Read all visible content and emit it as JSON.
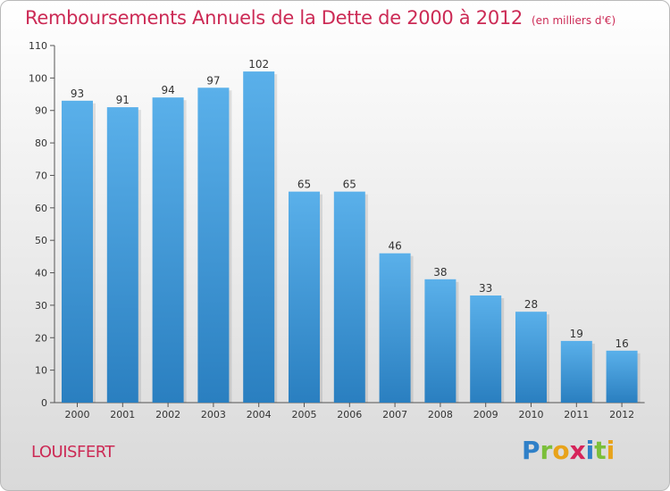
{
  "title": "Remboursements Annuels de la Dette de 2000 à 2012",
  "subtitle": "(en milliers d'€)",
  "commune": "LOUISFERT",
  "logo": {
    "letters": [
      "P",
      "r",
      "o",
      "x",
      "i",
      "t",
      "i"
    ],
    "colors": [
      "#2f80c8",
      "#7bbf3a",
      "#e8a31a",
      "#d6245a",
      "#2f80c8",
      "#7bbf3a",
      "#e8a31a"
    ]
  },
  "colors": {
    "title": "#cc2a55",
    "bar_top": "#5ab0ea",
    "bar_bottom": "#2a7fc0"
  },
  "chart_data": {
    "type": "bar",
    "title": "Remboursements Annuels de la Dette de 2000 à 2012",
    "subtitle": "(en milliers d'€)",
    "categories": [
      "2000",
      "2001",
      "2002",
      "2003",
      "2004",
      "2005",
      "2006",
      "2007",
      "2008",
      "2009",
      "2010",
      "2011",
      "2012"
    ],
    "values": [
      93,
      91,
      94,
      97,
      102,
      65,
      65,
      46,
      38,
      33,
      28,
      19,
      16
    ],
    "ylim": [
      0,
      110
    ],
    "yticks": [
      0,
      10,
      20,
      30,
      40,
      50,
      60,
      70,
      80,
      90,
      100,
      110
    ],
    "grid": false,
    "data_labels": true
  }
}
